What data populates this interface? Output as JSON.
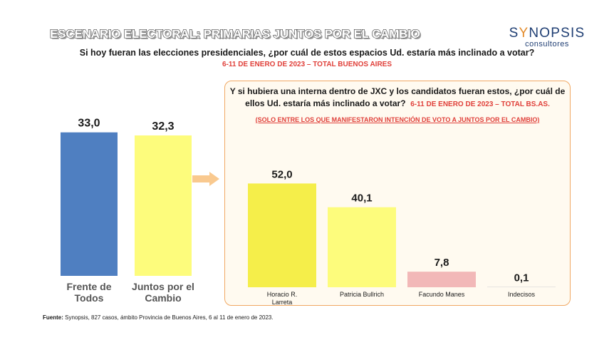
{
  "header": {
    "title": "ESCENARIO ELECTORAL: PRIMARIAS JUNTOS POR EL CAMBIO",
    "logo_main_pre": "S",
    "logo_main_y": "Y",
    "logo_main_post": "NOPSIS",
    "logo_sub": "consultores"
  },
  "question": "Si hoy fueran las elecciones presidenciales, ¿por cuál de estos espacios Ud. estaría más inclinado a votar?",
  "dateline": "6-11 DE ENERO DE 2023 – TOTAL BUENOS AIRES",
  "panel": {
    "question_line1": "Y si hubiera una interna dentro de JXC y los candidatos fueran estos, ¿por cuál de",
    "question_line2": "ellos Ud. estaría más inclinado a votar?",
    "date": "6-11 DE ENERO DE 2023 – TOTAL BS.AS.",
    "note": "(SOLO ENTRE LOS QUE MANIFESTARON INTENCIÓN DE VOTO A JUNTOS POR EL CAMBIO)"
  },
  "footnote": {
    "label": "Fuente:",
    "text": "Synopsis, 827 casos, ámbito Provincia de Buenos Aires, 6 al 11 de enero de 2023."
  },
  "chart_data": [
    {
      "type": "bar",
      "categories": [
        "Frente de Todos",
        "Juntos por el Cambio"
      ],
      "category_lines": [
        [
          "Frente de",
          "Todos"
        ],
        [
          "Juntos por el",
          "Cambio"
        ]
      ],
      "values": [
        33.0,
        32.3
      ],
      "value_labels": [
        "33,0",
        "32,3"
      ],
      "colors": [
        "#4f7fc1",
        "#fdfc7c"
      ]
    },
    {
      "type": "bar",
      "categories": [
        "Horacio R. Larreta",
        "Patricia Bullrich",
        "Facundo Manes",
        "Indecisos"
      ],
      "category_lines": [
        [
          "Horacio R.",
          "Larreta"
        ],
        [
          "Patricia Bullrich"
        ],
        [
          "Facundo Manes"
        ],
        [
          "Indecisos"
        ]
      ],
      "values": [
        52.0,
        40.1,
        7.8,
        0.1
      ],
      "value_labels": [
        "52,0",
        "40,1",
        "7,8",
        "0,1"
      ],
      "colors": [
        "#f5ee4a",
        "#fdfc7c",
        "#f2b8b8",
        "#cfcfcf"
      ]
    }
  ]
}
